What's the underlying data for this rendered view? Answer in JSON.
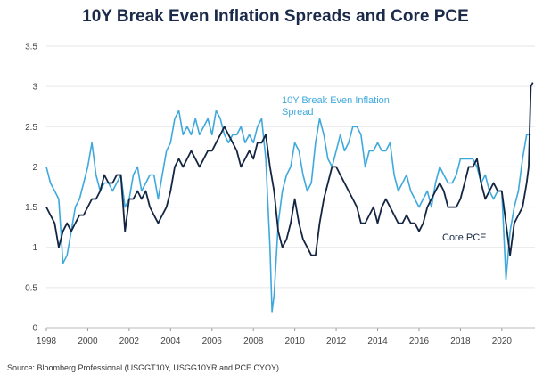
{
  "title": "10Y Break Even Inflation Spreads and Core PCE",
  "source": "Source: Bloomberg Professional (USGGT10Y, USGG10YR and PCE CYOY)",
  "colors": {
    "breakeven": "#3fa9dc",
    "core_pce": "#142542",
    "grid": "#e6e6e6"
  },
  "chart_data": {
    "type": "line",
    "title": "10Y Break Even Inflation Spreads and Core PCE",
    "xlabel": "",
    "ylabel": "",
    "xlim": [
      1998,
      2021.6
    ],
    "ylim": [
      0,
      3.5
    ],
    "x_ticks": [
      "1998",
      "2000",
      "2002",
      "2004",
      "2006",
      "2008",
      "2010",
      "2012",
      "2014",
      "2016",
      "2018",
      "2020"
    ],
    "y_ticks": [
      "0",
      "0.5",
      "1",
      "1.5",
      "2",
      "2.5",
      "3",
      "3.5"
    ],
    "grid": "horizontal",
    "legend": "none",
    "annotations": [
      {
        "lines": [
          "10Y Break Even Inflation",
          "Spread"
        ],
        "series": "breakeven"
      },
      {
        "lines": [
          "Core PCE"
        ],
        "series": "core_pce"
      }
    ],
    "series": [
      {
        "key": "breakeven",
        "points": [
          [
            1998.0,
            2.0
          ],
          [
            1998.2,
            1.8
          ],
          [
            1998.4,
            1.7
          ],
          [
            1998.6,
            1.6
          ],
          [
            1998.8,
            0.8
          ],
          [
            1999.0,
            0.9
          ],
          [
            1999.2,
            1.2
          ],
          [
            1999.4,
            1.5
          ],
          [
            1999.6,
            1.6
          ],
          [
            1999.8,
            1.8
          ],
          [
            2000.0,
            2.0
          ],
          [
            2000.2,
            2.3
          ],
          [
            2000.4,
            1.9
          ],
          [
            2000.6,
            1.7
          ],
          [
            2000.8,
            1.8
          ],
          [
            2001.0,
            1.8
          ],
          [
            2001.2,
            1.7
          ],
          [
            2001.4,
            1.8
          ],
          [
            2001.6,
            1.9
          ],
          [
            2001.8,
            1.5
          ],
          [
            2002.0,
            1.6
          ],
          [
            2002.2,
            1.9
          ],
          [
            2002.4,
            2.0
          ],
          [
            2002.6,
            1.7
          ],
          [
            2002.8,
            1.8
          ],
          [
            2003.0,
            1.9
          ],
          [
            2003.2,
            1.9
          ],
          [
            2003.4,
            1.6
          ],
          [
            2003.6,
            1.9
          ],
          [
            2003.8,
            2.2
          ],
          [
            2004.0,
            2.3
          ],
          [
            2004.2,
            2.6
          ],
          [
            2004.4,
            2.7
          ],
          [
            2004.6,
            2.4
          ],
          [
            2004.8,
            2.5
          ],
          [
            2005.0,
            2.4
          ],
          [
            2005.2,
            2.6
          ],
          [
            2005.4,
            2.4
          ],
          [
            2005.6,
            2.5
          ],
          [
            2005.8,
            2.6
          ],
          [
            2006.0,
            2.4
          ],
          [
            2006.2,
            2.7
          ],
          [
            2006.4,
            2.6
          ],
          [
            2006.6,
            2.4
          ],
          [
            2006.8,
            2.3
          ],
          [
            2007.0,
            2.4
          ],
          [
            2007.2,
            2.4
          ],
          [
            2007.4,
            2.5
          ],
          [
            2007.6,
            2.3
          ],
          [
            2007.8,
            2.4
          ],
          [
            2008.0,
            2.3
          ],
          [
            2008.2,
            2.5
          ],
          [
            2008.4,
            2.6
          ],
          [
            2008.6,
            2.1
          ],
          [
            2008.8,
            1.0
          ],
          [
            2008.9,
            0.2
          ],
          [
            2009.0,
            0.4
          ],
          [
            2009.2,
            1.3
          ],
          [
            2009.4,
            1.7
          ],
          [
            2009.6,
            1.9
          ],
          [
            2009.8,
            2.0
          ],
          [
            2010.0,
            2.3
          ],
          [
            2010.2,
            2.2
          ],
          [
            2010.4,
            1.9
          ],
          [
            2010.6,
            1.7
          ],
          [
            2010.8,
            1.8
          ],
          [
            2011.0,
            2.3
          ],
          [
            2011.2,
            2.6
          ],
          [
            2011.4,
            2.4
          ],
          [
            2011.6,
            2.1
          ],
          [
            2011.8,
            2.0
          ],
          [
            2012.0,
            2.2
          ],
          [
            2012.2,
            2.4
          ],
          [
            2012.4,
            2.2
          ],
          [
            2012.6,
            2.3
          ],
          [
            2012.8,
            2.5
          ],
          [
            2013.0,
            2.5
          ],
          [
            2013.2,
            2.4
          ],
          [
            2013.4,
            2.0
          ],
          [
            2013.6,
            2.2
          ],
          [
            2013.8,
            2.2
          ],
          [
            2014.0,
            2.3
          ],
          [
            2014.2,
            2.2
          ],
          [
            2014.4,
            2.2
          ],
          [
            2014.6,
            2.3
          ],
          [
            2014.8,
            1.9
          ],
          [
            2015.0,
            1.7
          ],
          [
            2015.2,
            1.8
          ],
          [
            2015.4,
            1.9
          ],
          [
            2015.6,
            1.7
          ],
          [
            2015.8,
            1.6
          ],
          [
            2016.0,
            1.5
          ],
          [
            2016.2,
            1.6
          ],
          [
            2016.4,
            1.7
          ],
          [
            2016.6,
            1.5
          ],
          [
            2016.8,
            1.8
          ],
          [
            2017.0,
            2.0
          ],
          [
            2017.2,
            1.9
          ],
          [
            2017.4,
            1.8
          ],
          [
            2017.6,
            1.8
          ],
          [
            2017.8,
            1.9
          ],
          [
            2018.0,
            2.1
          ],
          [
            2018.2,
            2.1
          ],
          [
            2018.4,
            2.1
          ],
          [
            2018.6,
            2.1
          ],
          [
            2018.8,
            2.0
          ],
          [
            2019.0,
            1.8
          ],
          [
            2019.2,
            1.9
          ],
          [
            2019.4,
            1.7
          ],
          [
            2019.6,
            1.6
          ],
          [
            2019.8,
            1.7
          ],
          [
            2020.0,
            1.7
          ],
          [
            2020.2,
            0.6
          ],
          [
            2020.4,
            1.2
          ],
          [
            2020.6,
            1.5
          ],
          [
            2020.8,
            1.7
          ],
          [
            2021.0,
            2.1
          ],
          [
            2021.2,
            2.4
          ],
          [
            2021.4,
            2.4
          ]
        ]
      },
      {
        "key": "core_pce",
        "points": [
          [
            1998.0,
            1.5
          ],
          [
            1998.2,
            1.4
          ],
          [
            1998.4,
            1.3
          ],
          [
            1998.6,
            1.0
          ],
          [
            1998.8,
            1.2
          ],
          [
            1999.0,
            1.3
          ],
          [
            1999.2,
            1.2
          ],
          [
            1999.4,
            1.3
          ],
          [
            1999.6,
            1.4
          ],
          [
            1999.8,
            1.4
          ],
          [
            2000.0,
            1.5
          ],
          [
            2000.2,
            1.6
          ],
          [
            2000.4,
            1.6
          ],
          [
            2000.6,
            1.7
          ],
          [
            2000.8,
            1.9
          ],
          [
            2001.0,
            1.8
          ],
          [
            2001.2,
            1.8
          ],
          [
            2001.4,
            1.9
          ],
          [
            2001.6,
            1.9
          ],
          [
            2001.8,
            1.2
          ],
          [
            2002.0,
            1.6
          ],
          [
            2002.2,
            1.6
          ],
          [
            2002.4,
            1.7
          ],
          [
            2002.6,
            1.6
          ],
          [
            2002.8,
            1.7
          ],
          [
            2003.0,
            1.5
          ],
          [
            2003.2,
            1.4
          ],
          [
            2003.4,
            1.3
          ],
          [
            2003.6,
            1.4
          ],
          [
            2003.8,
            1.5
          ],
          [
            2004.0,
            1.7
          ],
          [
            2004.2,
            2.0
          ],
          [
            2004.4,
            2.1
          ],
          [
            2004.6,
            2.0
          ],
          [
            2004.8,
            2.1
          ],
          [
            2005.0,
            2.2
          ],
          [
            2005.2,
            2.1
          ],
          [
            2005.4,
            2.0
          ],
          [
            2005.6,
            2.1
          ],
          [
            2005.8,
            2.2
          ],
          [
            2006.0,
            2.2
          ],
          [
            2006.2,
            2.3
          ],
          [
            2006.4,
            2.4
          ],
          [
            2006.6,
            2.5
          ],
          [
            2006.8,
            2.4
          ],
          [
            2007.0,
            2.3
          ],
          [
            2007.2,
            2.2
          ],
          [
            2007.4,
            2.0
          ],
          [
            2007.6,
            2.1
          ],
          [
            2007.8,
            2.2
          ],
          [
            2008.0,
            2.1
          ],
          [
            2008.2,
            2.3
          ],
          [
            2008.4,
            2.3
          ],
          [
            2008.6,
            2.4
          ],
          [
            2008.8,
            2.0
          ],
          [
            2009.0,
            1.7
          ],
          [
            2009.2,
            1.2
          ],
          [
            2009.4,
            1.0
          ],
          [
            2009.6,
            1.1
          ],
          [
            2009.8,
            1.3
          ],
          [
            2010.0,
            1.6
          ],
          [
            2010.2,
            1.3
          ],
          [
            2010.4,
            1.1
          ],
          [
            2010.6,
            1.0
          ],
          [
            2010.8,
            0.9
          ],
          [
            2011.0,
            0.9
          ],
          [
            2011.2,
            1.3
          ],
          [
            2011.4,
            1.6
          ],
          [
            2011.6,
            1.8
          ],
          [
            2011.8,
            2.0
          ],
          [
            2012.0,
            2.0
          ],
          [
            2012.2,
            1.9
          ],
          [
            2012.4,
            1.8
          ],
          [
            2012.6,
            1.7
          ],
          [
            2012.8,
            1.6
          ],
          [
            2013.0,
            1.5
          ],
          [
            2013.2,
            1.3
          ],
          [
            2013.4,
            1.3
          ],
          [
            2013.6,
            1.4
          ],
          [
            2013.8,
            1.5
          ],
          [
            2014.0,
            1.3
          ],
          [
            2014.2,
            1.5
          ],
          [
            2014.4,
            1.6
          ],
          [
            2014.6,
            1.5
          ],
          [
            2014.8,
            1.4
          ],
          [
            2015.0,
            1.3
          ],
          [
            2015.2,
            1.3
          ],
          [
            2015.4,
            1.4
          ],
          [
            2015.6,
            1.3
          ],
          [
            2015.8,
            1.3
          ],
          [
            2016.0,
            1.2
          ],
          [
            2016.2,
            1.3
          ],
          [
            2016.4,
            1.5
          ],
          [
            2016.6,
            1.6
          ],
          [
            2016.8,
            1.7
          ],
          [
            2017.0,
            1.8
          ],
          [
            2017.2,
            1.7
          ],
          [
            2017.4,
            1.5
          ],
          [
            2017.6,
            1.5
          ],
          [
            2017.8,
            1.5
          ],
          [
            2018.0,
            1.6
          ],
          [
            2018.2,
            1.8
          ],
          [
            2018.4,
            2.0
          ],
          [
            2018.6,
            2.0
          ],
          [
            2018.8,
            2.1
          ],
          [
            2019.0,
            1.8
          ],
          [
            2019.2,
            1.6
          ],
          [
            2019.4,
            1.7
          ],
          [
            2019.6,
            1.8
          ],
          [
            2019.8,
            1.7
          ],
          [
            2020.0,
            1.7
          ],
          [
            2020.2,
            1.3
          ],
          [
            2020.4,
            0.9
          ],
          [
            2020.6,
            1.3
          ],
          [
            2020.8,
            1.4
          ],
          [
            2021.0,
            1.5
          ],
          [
            2021.2,
            1.8
          ],
          [
            2021.3,
            2.0
          ],
          [
            2021.4,
            3.0
          ],
          [
            2021.5,
            3.05
          ]
        ]
      }
    ]
  }
}
